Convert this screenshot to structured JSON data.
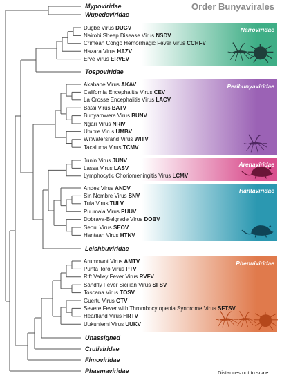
{
  "title": "Order Bunyavirales",
  "footnote": "Distances not to scale",
  "colors": {
    "nairoviridae": "#3fae86",
    "peribunyaviridae": "#9b62b5",
    "arenaviridae": "#d94f8e",
    "hantaviridae": "#2b98b1",
    "phenuiviridae": "#e07a4c",
    "tree": "#555555",
    "silhouette": "#1f3f3a"
  },
  "families": [
    {
      "name": "Mypoviridae"
    },
    {
      "name": "Wupedeviridae"
    },
    {
      "name": "Tospoviridae"
    },
    {
      "name": "Leishbuviridae"
    },
    {
      "name": "Unassigned"
    },
    {
      "name": "Cruliviridae"
    },
    {
      "name": "Fimoviridae"
    },
    {
      "name": "Phasmaviridae"
    }
  ],
  "groups": [
    {
      "name": "Nairoviridae",
      "viruses": [
        {
          "name": "Dugbe Virus",
          "abbr": "DUGV"
        },
        {
          "name": "Nairobi Sheep Disease Virus",
          "abbr": "NSDV"
        },
        {
          "name": "Crimean Congo Hemorrhagic Fever Virus",
          "abbr": "CCHFV"
        },
        {
          "name": "Hazara Virus",
          "abbr": "HAZV"
        },
        {
          "name": "Erve Virus",
          "abbr": "ERVEV"
        }
      ],
      "icons": [
        "mosquito-icon",
        "tick-icon"
      ]
    },
    {
      "name": "Peribunyaviridae",
      "viruses": [
        {
          "name": "Akabane Virus",
          "abbr": "AKAV"
        },
        {
          "name": "California Encephalitis Virus",
          "abbr": "CEV"
        },
        {
          "name": "La Crosse Encephalitis Virus",
          "abbr": "LACV"
        },
        {
          "name": "Batai Virus",
          "abbr": "BATV"
        },
        {
          "name": "Bunyamwera Virus",
          "abbr": "BUNV"
        },
        {
          "name": "Ngari Virus",
          "abbr": "NRIV"
        },
        {
          "name": "Umbre Virus",
          "abbr": "UMBV"
        },
        {
          "name": "Witwatersrand Virus",
          "abbr": "WITV"
        },
        {
          "name": "Tacaiuma Virus",
          "abbr": "TCMV"
        }
      ],
      "icons": [
        "mosquito-icon"
      ]
    },
    {
      "name": "Arenaviridae",
      "viruses": [
        {
          "name": "Junin Virus",
          "abbr": "JUNV"
        },
        {
          "name": "Lassa Virus",
          "abbr": "LASV"
        },
        {
          "name": "Lymphocytic Choriomeningitis Virus",
          "abbr": "LCMV"
        }
      ],
      "icons": [
        "rodent-icon"
      ]
    },
    {
      "name": "Hantaviridae",
      "viruses": [
        {
          "name": "Andes Virus",
          "abbr": "ANDV"
        },
        {
          "name": "Sin Nombre Virus",
          "abbr": "SNV"
        },
        {
          "name": "Tula Virus",
          "abbr": "TULV"
        },
        {
          "name": "Puumala Virus",
          "abbr": "PUUV"
        },
        {
          "name": "Dobrava-Belgrade Virus",
          "abbr": "DOBV"
        },
        {
          "name": "Seoul Virus",
          "abbr": "SEOV"
        },
        {
          "name": "Hantaan Virus",
          "abbr": "HTNV"
        }
      ],
      "icons": [
        "rodent-icon"
      ]
    },
    {
      "name": "Phenuiviridae",
      "viruses": [
        {
          "name": "Arumowot Virus",
          "abbr": "AMTV"
        },
        {
          "name": "Punta Toro Virus",
          "abbr": "PTV"
        },
        {
          "name": "Rift Valley Fever Virus",
          "abbr": "RVFV"
        },
        {
          "name": "Sandfly Fever Sicilian Virus",
          "abbr": "SFSV"
        },
        {
          "name": "Toscana Virus",
          "abbr": "TOSV"
        },
        {
          "name": "Guertu Virus",
          "abbr": "GTV"
        },
        {
          "name": "Severe Fever with Thrombocytopenia Syndrome Virus",
          "abbr": "SFTSV"
        },
        {
          "name": "Heartland Virus",
          "abbr": "HRTV"
        },
        {
          "name": "Uukuniemi Virus",
          "abbr": "UUKV"
        }
      ],
      "icons": [
        "mosquito-icon",
        "sandfly-icon",
        "tick-icon"
      ]
    }
  ]
}
